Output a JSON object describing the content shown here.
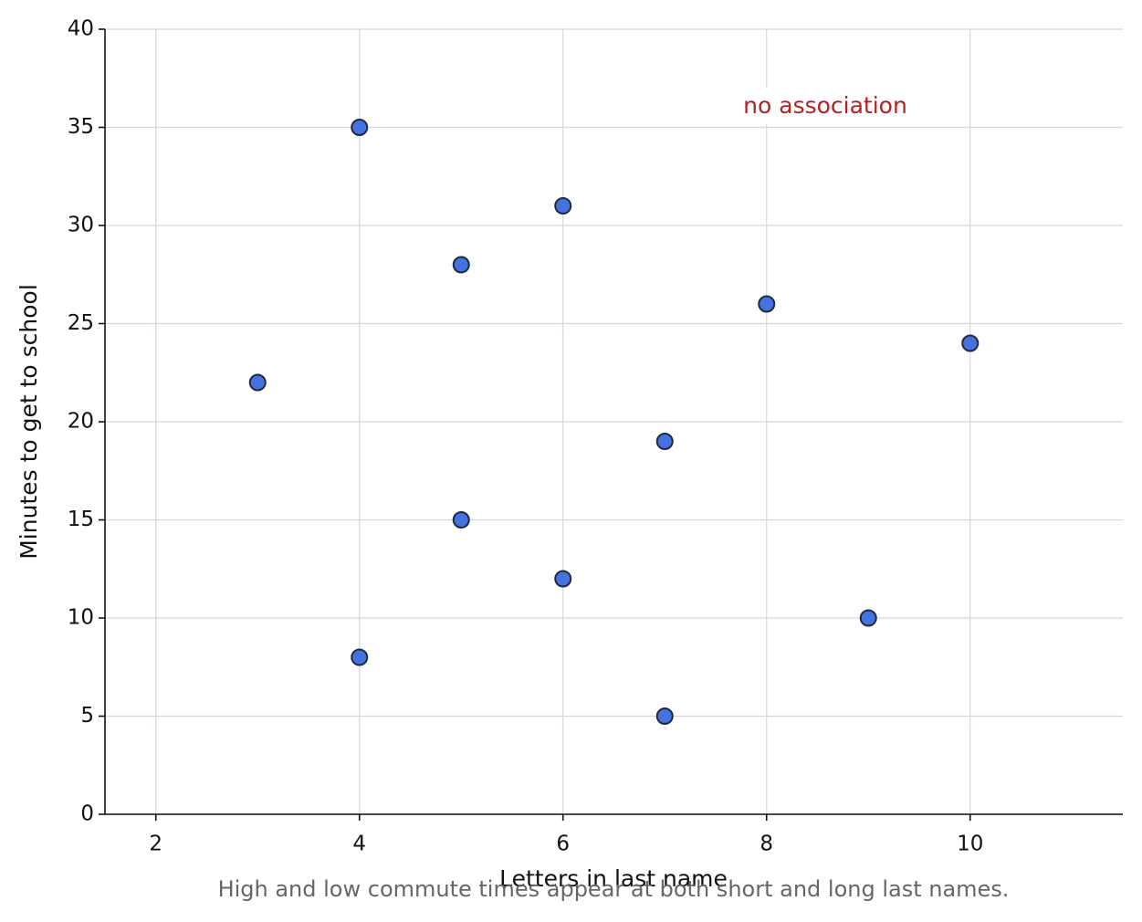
{
  "chart_data": {
    "type": "scatter",
    "x_label": "Letters in last name",
    "y_label": "Minutes to get to school",
    "annotation": "no association",
    "caption": "High and low commute times appear at both short and long last names.",
    "x": [
      3,
      4,
      4,
      5,
      5,
      6,
      6,
      7,
      7,
      8,
      9,
      10
    ],
    "values": [
      22,
      35,
      8,
      28,
      15,
      31,
      12,
      19,
      5,
      26,
      10,
      24
    ],
    "color": "#4472e0",
    "edge_color": "#222a3a",
    "xlim": [
      1.5,
      11.5
    ],
    "xticks": [
      2,
      4,
      6,
      8,
      10
    ],
    "ylim": [
      0,
      40
    ],
    "yticks": [
      0,
      5,
      10,
      15,
      20,
      25,
      30,
      35,
      40
    ],
    "grid": true
  }
}
